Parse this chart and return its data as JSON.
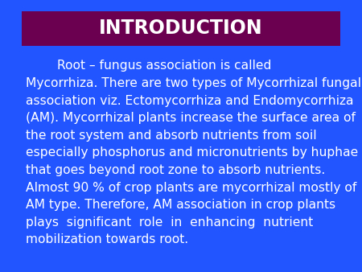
{
  "title": "INTRODUCTION",
  "title_bg_color": "#6B0050",
  "title_text_color": "#FFFFFF",
  "background_color": "#2255FF",
  "body_text_color": "#FFFFFF",
  "lines": [
    "        Root – fungus association is called",
    "Mycorrhiza. There are two types of Mycorrhizal fungal",
    "association viz. Ectomycorrhiza and Endomycorrhiza",
    "(AM). Mycorrhizal plants increase the surface area of",
    "the root system and absorb nutrients from soil",
    "especially phosphorus and micronutrients by huphae",
    "that goes beyond root zone to absorb nutrients.",
    "Almost 90 % of crop plants are mycorrhizal mostly of",
    "AM type. Therefore, AM association in crop plants",
    "plays  significant  role  in  enhancing  nutrient",
    "mobilization towards root."
  ],
  "title_fontsize": 17,
  "body_fontsize": 11.2,
  "fig_width": 4.5,
  "fig_height": 3.38
}
